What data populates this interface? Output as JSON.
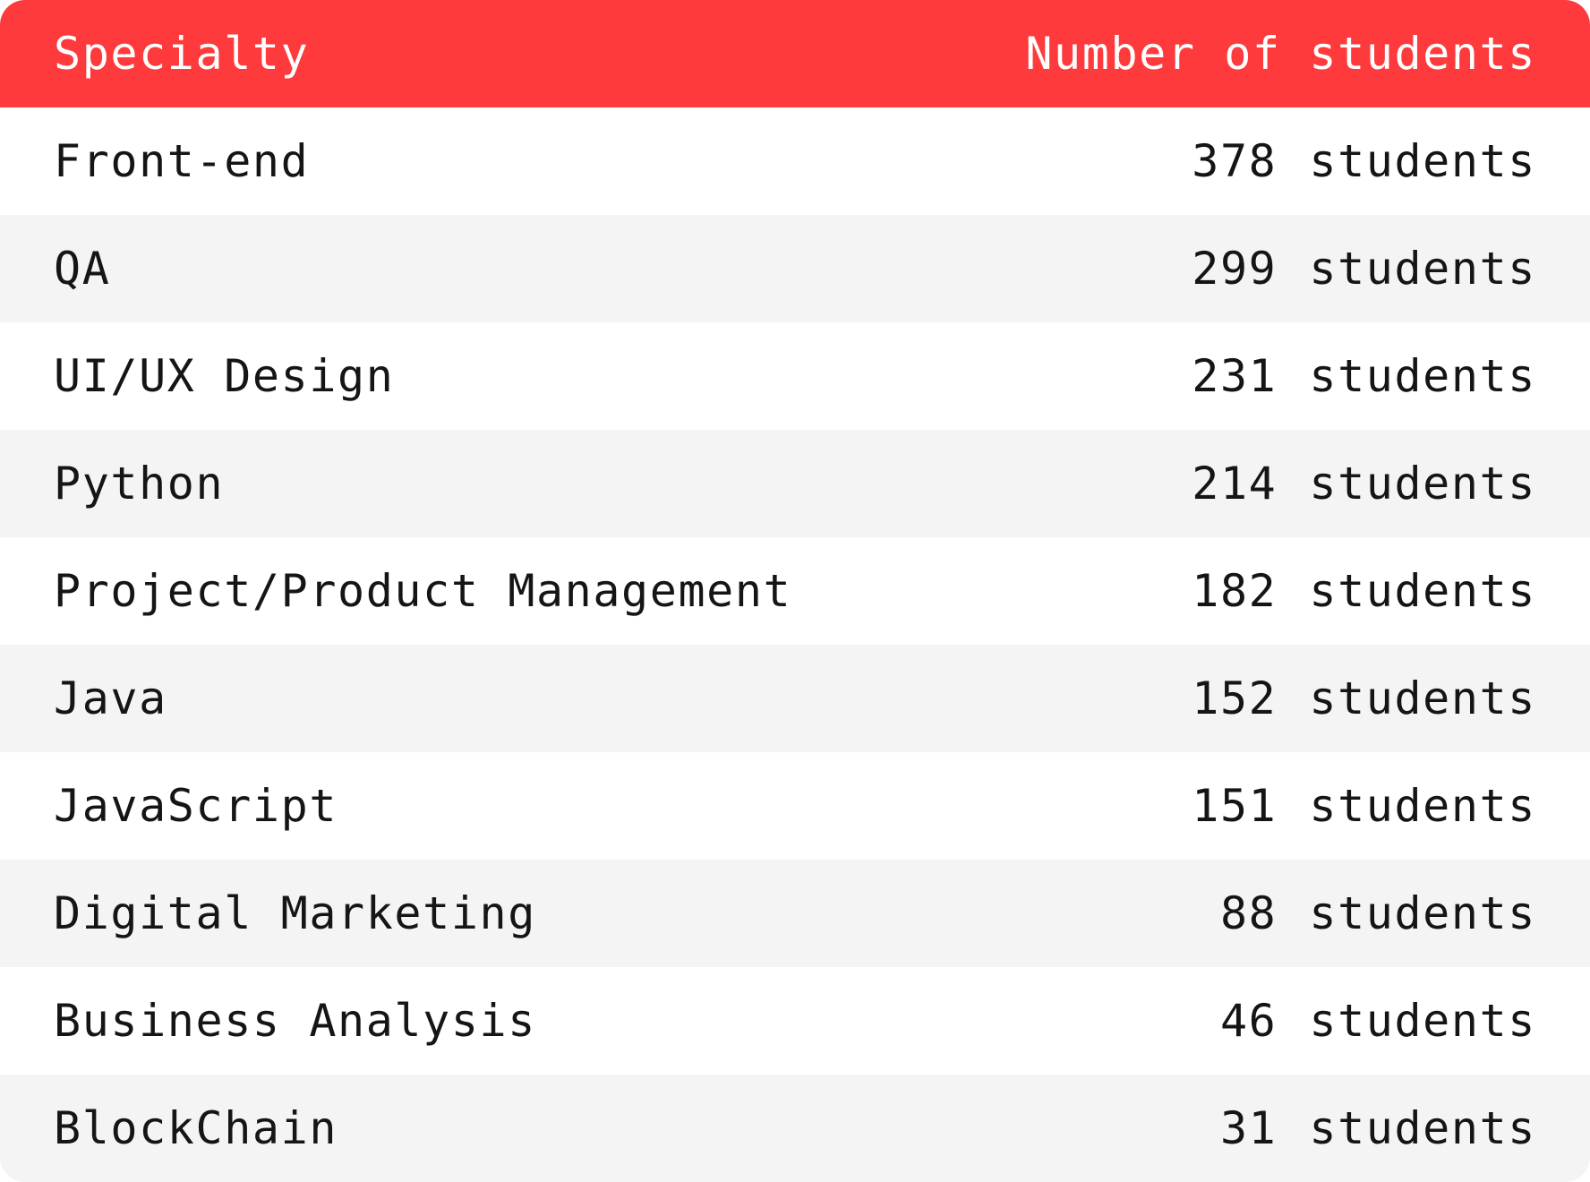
{
  "chart_data": {
    "type": "table",
    "columns": [
      "Specialty",
      "Number of students"
    ],
    "rows": [
      {
        "specialty": "Front-end",
        "count": "378",
        "unit": "students"
      },
      {
        "specialty": "QA",
        "count": "299",
        "unit": "students"
      },
      {
        "specialty": "UI/UX Design",
        "count": "231",
        "unit": "students"
      },
      {
        "specialty": "Python",
        "count": "214",
        "unit": "students"
      },
      {
        "specialty": "Project/Product Management",
        "count": "182",
        "unit": "students"
      },
      {
        "specialty": "Java",
        "count": "152",
        "unit": "students"
      },
      {
        "specialty": "JavaScript",
        "count": "151",
        "unit": "students"
      },
      {
        "specialty": "Digital Marketing",
        "count": "88",
        "unit": "students"
      },
      {
        "specialty": "Business Analysis",
        "count": "46",
        "unit": "students"
      },
      {
        "specialty": "BlockChain",
        "count": "31",
        "unit": "students"
      }
    ]
  },
  "colors": {
    "header_bg": "#fe3a3c",
    "header_text": "#ffffff",
    "row_odd": "#ffffff",
    "row_even": "#f4f4f4",
    "text": "#151515"
  }
}
